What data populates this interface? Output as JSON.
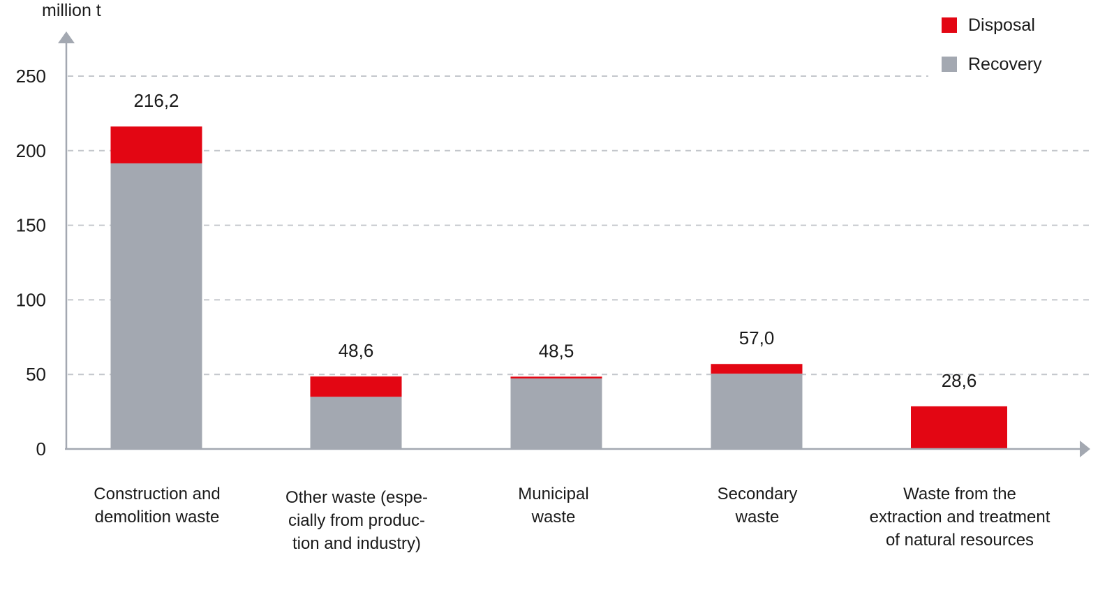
{
  "chart_data": {
    "type": "bar",
    "stacked": true,
    "unit_label": "million t",
    "categories": [
      [
        "Construction and",
        "demolition waste"
      ],
      [
        "Other waste (espe-",
        "cially from produc-",
        "tion and industry)"
      ],
      [
        "Municipal",
        "waste"
      ],
      [
        "Secondary",
        "waste"
      ],
      [
        "Waste from the",
        "extraction and treatment",
        "of natural resources"
      ]
    ],
    "series": [
      {
        "name": "Recovery",
        "color": "#a3a8b1",
        "values": [
          191.5,
          35.0,
          47.3,
          50.5,
          0
        ]
      },
      {
        "name": "Disposal",
        "color": "#e30613",
        "values": [
          24.7,
          13.6,
          1.2,
          6.5,
          28.6
        ]
      }
    ],
    "totals": [
      "216,2",
      "48,6",
      "48,5",
      "57,0",
      "28,6"
    ],
    "ylim": [
      0,
      250
    ],
    "yticks": [
      "0",
      "50",
      "100",
      "150",
      "200",
      "250"
    ],
    "grid": "dashed horizontal",
    "legend": {
      "position": "top-right",
      "items": [
        {
          "label": "Disposal",
          "color": "#e30613"
        },
        {
          "label": "Recovery",
          "color": "#a3a8b1"
        }
      ]
    }
  }
}
